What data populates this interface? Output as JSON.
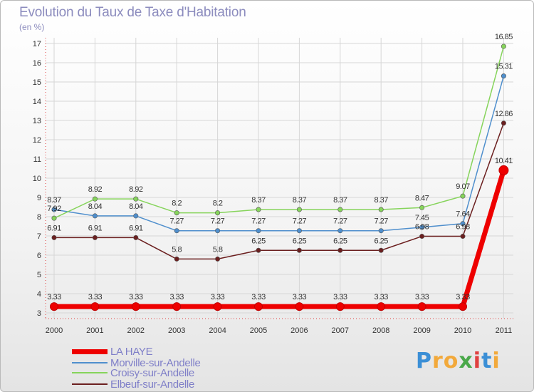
{
  "title": "Evolution du Taux de Taxe d'Habitation",
  "subtitle": "(en %)",
  "logo": "Proxiti",
  "chart_data": {
    "type": "line",
    "title": "Evolution du Taux de Taxe d'Habitation",
    "ylabel": "(en %)",
    "xlabel": "",
    "ylim": [
      3,
      17
    ],
    "yticks": [
      3,
      4,
      5,
      6,
      7,
      8,
      9,
      10,
      11,
      12,
      13,
      14,
      15,
      16,
      17
    ],
    "categories": [
      "2000",
      "2001",
      "2002",
      "2003",
      "2004",
      "2005",
      "2006",
      "2007",
      "2008",
      "2009",
      "2010",
      "2011"
    ],
    "series": [
      {
        "name": "LA HAYE",
        "color": "#ee0000",
        "values": [
          3.33,
          3.33,
          3.33,
          3.33,
          3.33,
          3.33,
          3.33,
          3.33,
          3.33,
          3.33,
          3.33,
          10.41
        ],
        "labels": [
          "3.33",
          "3.33",
          "3.33",
          "3.33",
          "3.33",
          "3.33",
          "3.33",
          "3.33",
          "3.33",
          "3.33",
          "3.33",
          "10.41"
        ]
      },
      {
        "name": "Morville-sur-Andelle",
        "color": "#4f8fcd",
        "values": [
          8.37,
          8.04,
          8.04,
          7.27,
          7.27,
          7.27,
          7.27,
          7.27,
          7.27,
          7.45,
          7.64,
          15.31
        ],
        "labels": [
          "8.37",
          "8.04",
          "8.04",
          "7.27",
          "7.27",
          "7.27",
          "7.27",
          "7.27",
          "7.27",
          "7.45",
          "7.64",
          "15.31"
        ]
      },
      {
        "name": "Croisy-sur-Andelle",
        "color": "#86d45b",
        "values": [
          7.92,
          8.92,
          8.92,
          8.2,
          8.2,
          8.37,
          8.37,
          8.37,
          8.37,
          8.47,
          9.07,
          16.85
        ],
        "labels": [
          "7.92",
          "8.92",
          "8.92",
          "8.2",
          "8.2",
          "8.37",
          "8.37",
          "8.37",
          "8.37",
          "8.47",
          "9.07",
          "16.85"
        ]
      },
      {
        "name": "Elbeuf-sur-Andelle",
        "color": "#6b1f1f",
        "values": [
          6.91,
          6.91,
          6.91,
          5.8,
          5.8,
          6.25,
          6.25,
          6.25,
          6.25,
          6.98,
          6.98,
          12.86
        ],
        "labels": [
          "6.91",
          "6.91",
          "6.91",
          "5.8",
          "5.8",
          "6.25",
          "6.25",
          "6.25",
          "6.25",
          "6.98",
          "6.98",
          "12.86"
        ]
      }
    ]
  }
}
